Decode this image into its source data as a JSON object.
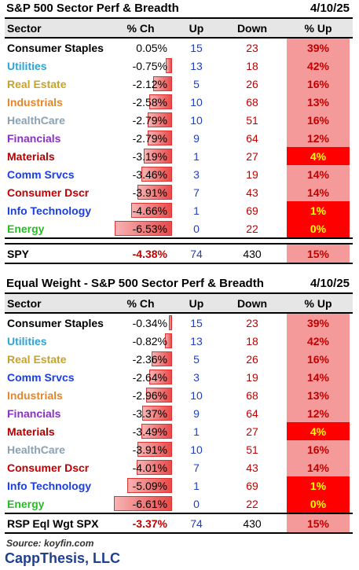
{
  "table1": {
    "title": "S&P 500 Sector Perf & Breadth",
    "date": "4/10/25",
    "headers": [
      "Sector",
      "% Ch",
      "Up",
      "Down",
      "% Up"
    ],
    "rows": [
      {
        "sector": "Consumer Staples",
        "color": "#000000",
        "pct": "0.05%",
        "pct_value": 0.05,
        "up": "15",
        "down": "23",
        "upp": "39%",
        "highlight": false
      },
      {
        "sector": "Utilities",
        "color": "#2aa5d8",
        "pct": "-0.75%",
        "pct_value": -0.75,
        "up": "13",
        "down": "18",
        "upp": "42%",
        "highlight": false
      },
      {
        "sector": "Real Estate",
        "color": "#c9a227",
        "pct": "-2.12%",
        "pct_value": -2.12,
        "up": "5",
        "down": "26",
        "upp": "16%",
        "highlight": false
      },
      {
        "sector": "Industrials",
        "color": "#e4862a",
        "pct": "-2.58%",
        "pct_value": -2.58,
        "up": "10",
        "down": "68",
        "upp": "13%",
        "highlight": false
      },
      {
        "sector": "HealthCare",
        "color": "#8aa1b4",
        "pct": "-2.79%",
        "pct_value": -2.79,
        "up": "10",
        "down": "51",
        "upp": "16%",
        "highlight": false
      },
      {
        "sector": "Financials",
        "color": "#8b2fc9",
        "pct": "-2.79%",
        "pct_value": -2.79,
        "up": "9",
        "down": "64",
        "upp": "12%",
        "highlight": false
      },
      {
        "sector": "Materials",
        "color": "#b00000",
        "pct": "-3.19%",
        "pct_value": -3.19,
        "up": "1",
        "down": "27",
        "upp": "4%",
        "highlight": true
      },
      {
        "sector": "Comm Srvcs",
        "color": "#1a3ee0",
        "pct": "-3.46%",
        "pct_value": -3.46,
        "up": "3",
        "down": "19",
        "upp": "14%",
        "highlight": false
      },
      {
        "sector": "Consumer Dscr",
        "color": "#c00000",
        "pct": "-3.91%",
        "pct_value": -3.91,
        "up": "7",
        "down": "43",
        "upp": "14%",
        "highlight": false
      },
      {
        "sector": "Info Technology",
        "color": "#1a3ee0",
        "pct": "-4.66%",
        "pct_value": -4.66,
        "up": "1",
        "down": "69",
        "upp": "1%",
        "highlight": true
      },
      {
        "sector": "Energy",
        "color": "#22c020",
        "pct": "-6.53%",
        "pct_value": -6.53,
        "up": "0",
        "down": "22",
        "upp": "0%",
        "highlight": true
      }
    ],
    "summary": {
      "label": "SPY",
      "pct": "-4.38%",
      "up": "74",
      "down": "430",
      "upp": "15%"
    }
  },
  "table2": {
    "title": "Equal Weight - S&P 500 Sector Perf & Breadth",
    "date": "4/10/25",
    "headers": [
      "Sector",
      "% Ch",
      "Up",
      "Down",
      "% Up"
    ],
    "rows": [
      {
        "sector": "Consumer Staples",
        "color": "#000000",
        "pct": "-0.34%",
        "pct_value": -0.34,
        "up": "15",
        "down": "23",
        "upp": "39%",
        "highlight": false
      },
      {
        "sector": "Utilities",
        "color": "#2aa5d8",
        "pct": "-0.82%",
        "pct_value": -0.82,
        "up": "13",
        "down": "18",
        "upp": "42%",
        "highlight": false
      },
      {
        "sector": "Real Estate",
        "color": "#c9a227",
        "pct": "-2.36%",
        "pct_value": -2.36,
        "up": "5",
        "down": "26",
        "upp": "16%",
        "highlight": false
      },
      {
        "sector": "Comm Srvcs",
        "color": "#1a3ee0",
        "pct": "-2.64%",
        "pct_value": -2.64,
        "up": "3",
        "down": "19",
        "upp": "14%",
        "highlight": false
      },
      {
        "sector": "Industrials",
        "color": "#e4862a",
        "pct": "-2.96%",
        "pct_value": -2.96,
        "up": "10",
        "down": "68",
        "upp": "13%",
        "highlight": false
      },
      {
        "sector": "Financials",
        "color": "#8b2fc9",
        "pct": "-3.37%",
        "pct_value": -3.37,
        "up": "9",
        "down": "64",
        "upp": "12%",
        "highlight": false
      },
      {
        "sector": "Materials",
        "color": "#b00000",
        "pct": "-3.49%",
        "pct_value": -3.49,
        "up": "1",
        "down": "27",
        "upp": "4%",
        "highlight": true
      },
      {
        "sector": "HealthCare",
        "color": "#8aa1b4",
        "pct": "-3.91%",
        "pct_value": -3.91,
        "up": "10",
        "down": "51",
        "upp": "16%",
        "highlight": false
      },
      {
        "sector": "Consumer Dscr",
        "color": "#c00000",
        "pct": "-4.01%",
        "pct_value": -4.01,
        "up": "7",
        "down": "43",
        "upp": "14%",
        "highlight": false
      },
      {
        "sector": "Info Technology",
        "color": "#1a3ee0",
        "pct": "-5.09%",
        "pct_value": -5.09,
        "up": "1",
        "down": "69",
        "upp": "1%",
        "highlight": true
      },
      {
        "sector": "Energy",
        "color": "#22c020",
        "pct": "-6.61%",
        "pct_value": -6.61,
        "up": "0",
        "down": "22",
        "upp": "0%",
        "highlight": true
      }
    ],
    "summary": {
      "label": "RSP Eql Wgt SPX",
      "pct": "-3.37%",
      "up": "74",
      "down": "430",
      "upp": "15%"
    }
  },
  "footer": {
    "source": "Source: koyfin.com",
    "brand": "CappThesis, LLC"
  },
  "colors": {
    "up": "#1f3fbf",
    "down": "#c00000",
    "pct_up_bg": "#f49a9a",
    "pct_up_highlight": "#ff0000"
  }
}
